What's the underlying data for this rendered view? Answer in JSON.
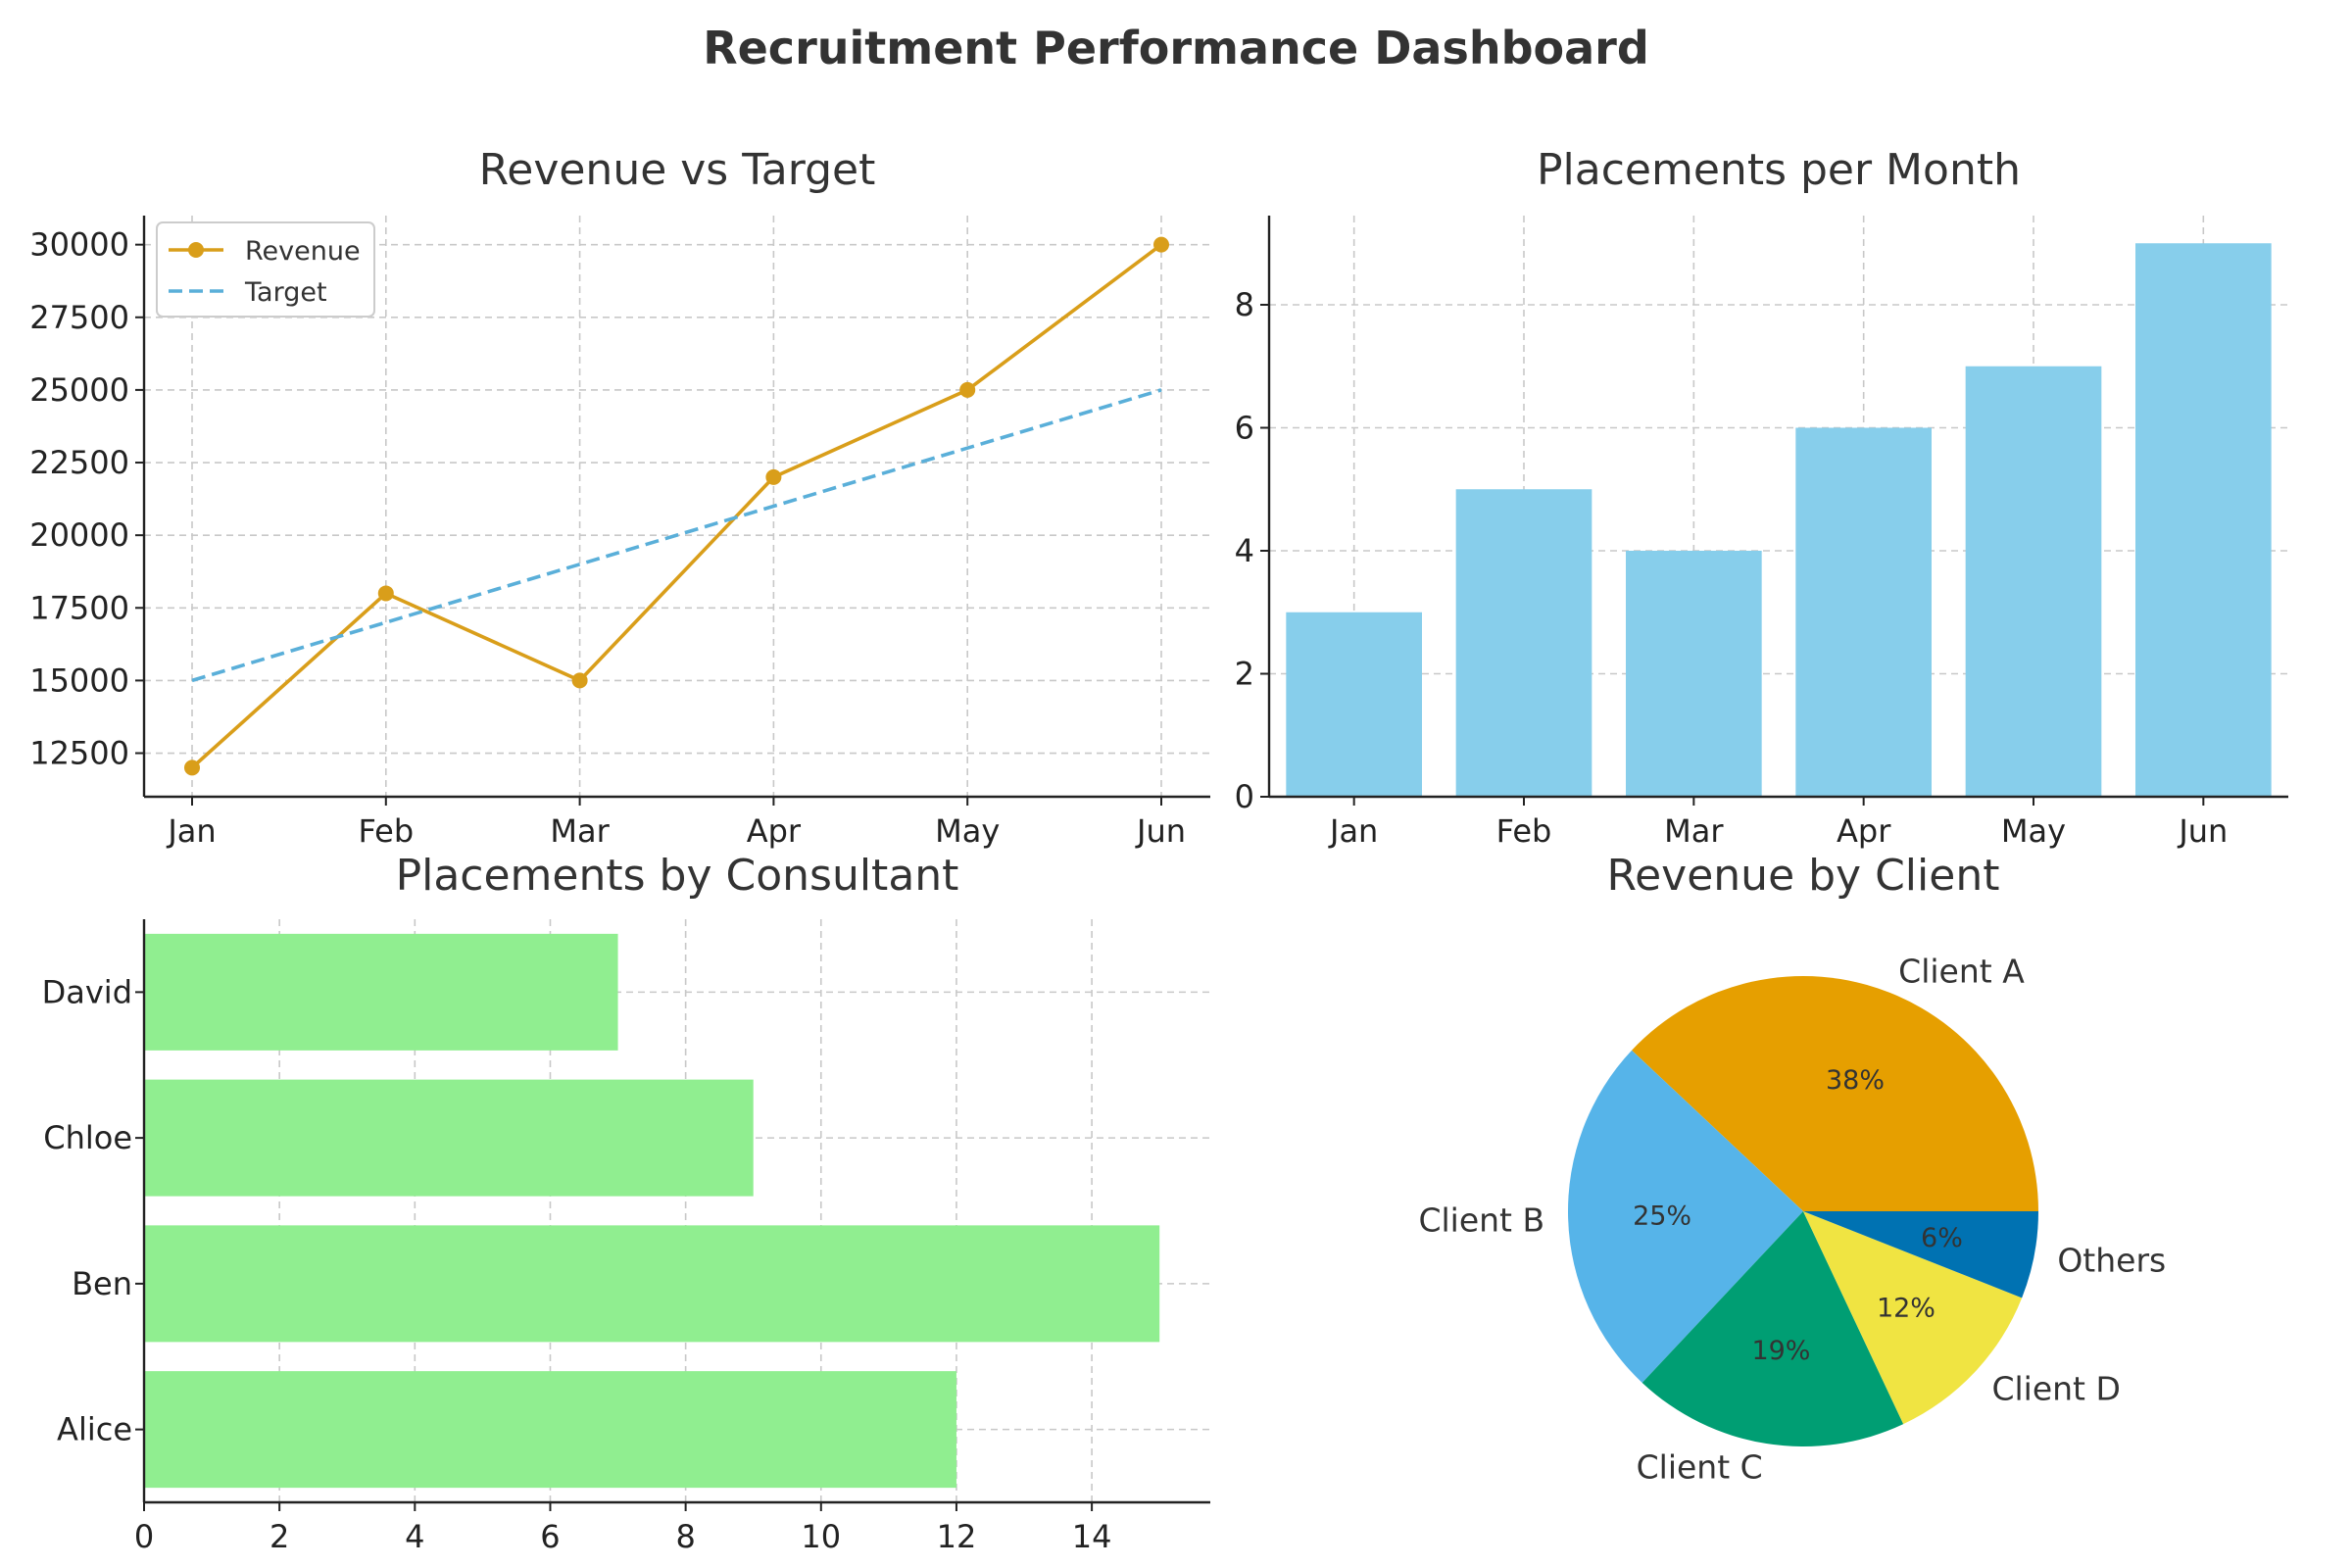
{
  "dashboard": {
    "title": "Recruitment Performance Dashboard"
  },
  "chart_data": [
    {
      "type": "line",
      "title": "Revenue vs Target",
      "categories": [
        "Jan",
        "Feb",
        "Mar",
        "Apr",
        "May",
        "Jun"
      ],
      "series": [
        {
          "name": "Revenue",
          "values": [
            12000,
            18000,
            15000,
            22000,
            25000,
            30000
          ],
          "color": "#D99E1A",
          "style": "solid-markers"
        },
        {
          "name": "Target",
          "values": [
            15000,
            17000,
            19000,
            21000,
            23000,
            25000
          ],
          "color": "#5AAFD9",
          "style": "dashed"
        }
      ],
      "ylim": [
        11000,
        31000
      ],
      "yticks": [
        12500,
        15000,
        17500,
        20000,
        22500,
        25000,
        27500,
        30000
      ],
      "legend": "top-left",
      "grid": true
    },
    {
      "type": "bar",
      "title": "Placements per Month",
      "categories": [
        "Jan",
        "Feb",
        "Mar",
        "Apr",
        "May",
        "Jun"
      ],
      "values": [
        3,
        5,
        4,
        6,
        7,
        9
      ],
      "ylim": [
        0,
        9.45
      ],
      "yticks": [
        0,
        2,
        4,
        6,
        8
      ],
      "color": "#87CEEB",
      "grid": true
    },
    {
      "type": "bar",
      "orientation": "horizontal",
      "title": "Placements by Consultant",
      "categories": [
        "Alice",
        "Ben",
        "Chloe",
        "David"
      ],
      "values": [
        12,
        15,
        9,
        7
      ],
      "xlim": [
        0,
        15.75
      ],
      "xticks": [
        0,
        2,
        4,
        6,
        8,
        10,
        12,
        14
      ],
      "color": "#90EE90",
      "grid": true
    },
    {
      "type": "pie",
      "title": "Revenue by Client",
      "slices": [
        {
          "label": "Client A",
          "value": 38,
          "pct_label": "38%",
          "color": "#E69F00"
        },
        {
          "label": "Client B",
          "value": 25,
          "pct_label": "25%",
          "color": "#56B4E9"
        },
        {
          "label": "Client C",
          "value": 19,
          "pct_label": "19%",
          "color": "#009E73"
        },
        {
          "label": "Client D",
          "value": 12,
          "pct_label": "12%",
          "color": "#F0E442"
        },
        {
          "label": "Others",
          "value": 6,
          "pct_label": "6%",
          "color": "#0072B2"
        }
      ]
    }
  ]
}
